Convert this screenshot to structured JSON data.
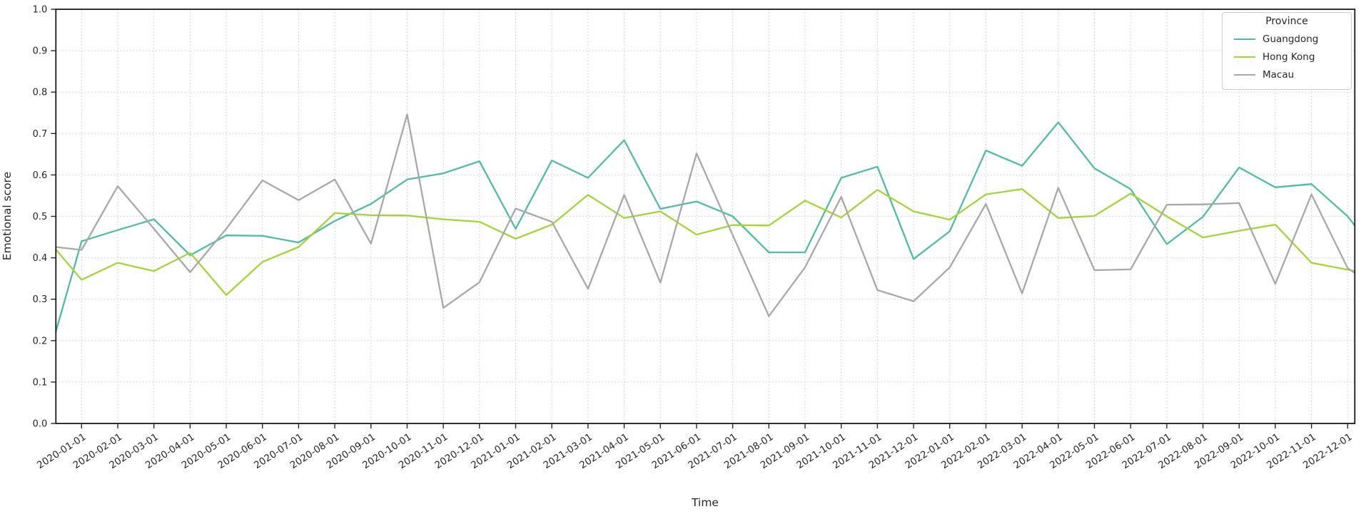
{
  "chart_data": {
    "type": "line",
    "title": "",
    "xlabel": "Time",
    "ylabel": "Emotional score",
    "ylim": [
      0.0,
      1.0
    ],
    "ytick_step": 0.1,
    "ytick_labels": [
      "0.0",
      "0.1",
      "0.2",
      "0.3",
      "0.4",
      "0.5",
      "0.6",
      "0.7",
      "0.8",
      "0.9",
      "1.0"
    ],
    "grid": "dotted, both axes",
    "legend": {
      "title": "Province",
      "position": "upper right"
    },
    "x": [
      "2020-01-01",
      "2020-02-01",
      "2020-03-01",
      "2020-04-01",
      "2020-05-01",
      "2020-06-01",
      "2020-07-01",
      "2020-08-01",
      "2020-09-01",
      "2020-10-01",
      "2020-11-01",
      "2020-12-01",
      "2021-01-01",
      "2021-02-01",
      "2021-03-01",
      "2021-04-01",
      "2021-05-01",
      "2021-06-01",
      "2021-07-01",
      "2021-08-01",
      "2021-09-01",
      "2021-10-01",
      "2021-11-01",
      "2021-12-01",
      "2022-01-01",
      "2022-02-01",
      "2022-03-01",
      "2022-04-01",
      "2022-05-01",
      "2022-06-01",
      "2022-07-01",
      "2022-08-01",
      "2022-09-01",
      "2022-10-01",
      "2022-11-01",
      "2022-12-01"
    ],
    "series": [
      {
        "name": "Guangdong",
        "color": "#52bba3",
        "values": [
          0.44,
          0.467,
          0.493,
          0.406,
          0.454,
          0.453,
          0.437,
          0.489,
          0.53,
          0.589,
          0.604,
          0.633,
          0.47,
          0.635,
          0.593,
          0.684,
          0.518,
          0.536,
          0.5,
          0.413,
          0.413,
          0.593,
          0.62,
          0.397,
          0.464,
          0.659,
          0.622,
          0.727,
          0.616,
          0.566,
          0.433,
          0.499,
          0.618,
          0.57,
          0.578,
          0.5
        ],
        "left_edge_clip_value": 0.222,
        "right_edge_clip_value": 0.478
      },
      {
        "name": "Hong Kong",
        "color": "#a3d43c",
        "values": [
          0.347,
          0.388,
          0.368,
          0.412,
          0.31,
          0.39,
          0.426,
          0.508,
          0.503,
          0.502,
          0.493,
          0.487,
          0.446,
          0.48,
          0.552,
          0.496,
          0.512,
          0.456,
          0.479,
          0.478,
          0.538,
          0.497,
          0.564,
          0.512,
          0.492,
          0.553,
          0.566,
          0.496,
          0.501,
          0.555,
          0.5,
          0.449,
          0.465,
          0.48,
          0.388,
          0.371
        ],
        "left_edge_clip_value": 0.42,
        "right_edge_clip_value": 0.368
      },
      {
        "name": "Macau",
        "color": "#a8a8a8",
        "values": [
          0.419,
          0.573,
          0.47,
          0.365,
          0.47,
          0.587,
          0.539,
          0.589,
          0.434,
          0.746,
          0.279,
          0.341,
          0.519,
          0.487,
          0.325,
          0.552,
          0.34,
          0.652,
          0.455,
          0.259,
          0.377,
          0.547,
          0.322,
          0.295,
          0.377,
          0.53,
          0.314,
          0.569,
          0.37,
          0.372,
          0.528,
          0.529,
          0.532,
          0.337,
          0.553,
          0.375
        ],
        "left_edge_clip_value": 0.426,
        "right_edge_clip_value": 0.363
      }
    ]
  }
}
